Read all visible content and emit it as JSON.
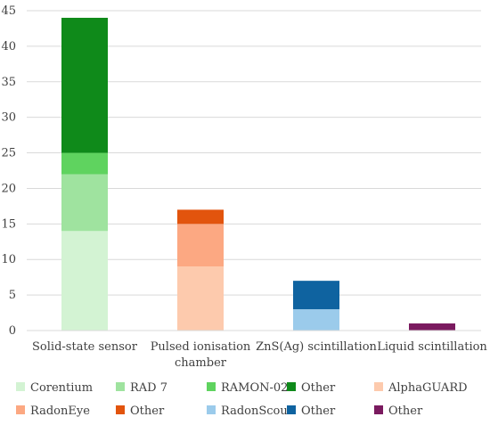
{
  "chart_data": {
    "type": "bar",
    "stacked": true,
    "categories": [
      [
        "Solid-state sensor"
      ],
      [
        "Pulsed ionisation",
        "chamber"
      ],
      [
        "ZnS(Ag) scintillation"
      ],
      [
        "Liquid scintillation"
      ]
    ],
    "ylim": [
      0,
      45
    ],
    "yticks": [
      0,
      5,
      10,
      15,
      20,
      25,
      30,
      35,
      40,
      45
    ],
    "grid": true,
    "legend_position": "bottom",
    "series": [
      {
        "name": "Corentium",
        "color": "#d3f3d3",
        "values": [
          14,
          0,
          0,
          0
        ]
      },
      {
        "name": "RAD 7",
        "color": "#9fe39f",
        "values": [
          8,
          0,
          0,
          0
        ]
      },
      {
        "name": "RAMON-02",
        "color": "#5fd35f",
        "values": [
          3,
          0,
          0,
          0
        ]
      },
      {
        "name": "Other",
        "color": "#0f8a1a",
        "values": [
          19,
          0,
          0,
          0
        ]
      },
      {
        "name": "AlphaGUARD",
        "color": "#fdcaad",
        "values": [
          0,
          9,
          0,
          0
        ]
      },
      {
        "name": "RadonEye",
        "color": "#fca882",
        "values": [
          0,
          6,
          0,
          0
        ]
      },
      {
        "name": "Other",
        "color": "#e2540d",
        "values": [
          0,
          2,
          0,
          0
        ]
      },
      {
        "name": "RadonScout",
        "color": "#9bcbeb",
        "values": [
          0,
          0,
          3,
          0
        ]
      },
      {
        "name": "Other",
        "color": "#0f63a0",
        "values": [
          0,
          0,
          4,
          0
        ]
      },
      {
        "name": "Other",
        "color": "#7a1a5f",
        "values": [
          0,
          0,
          0,
          1
        ]
      }
    ]
  }
}
